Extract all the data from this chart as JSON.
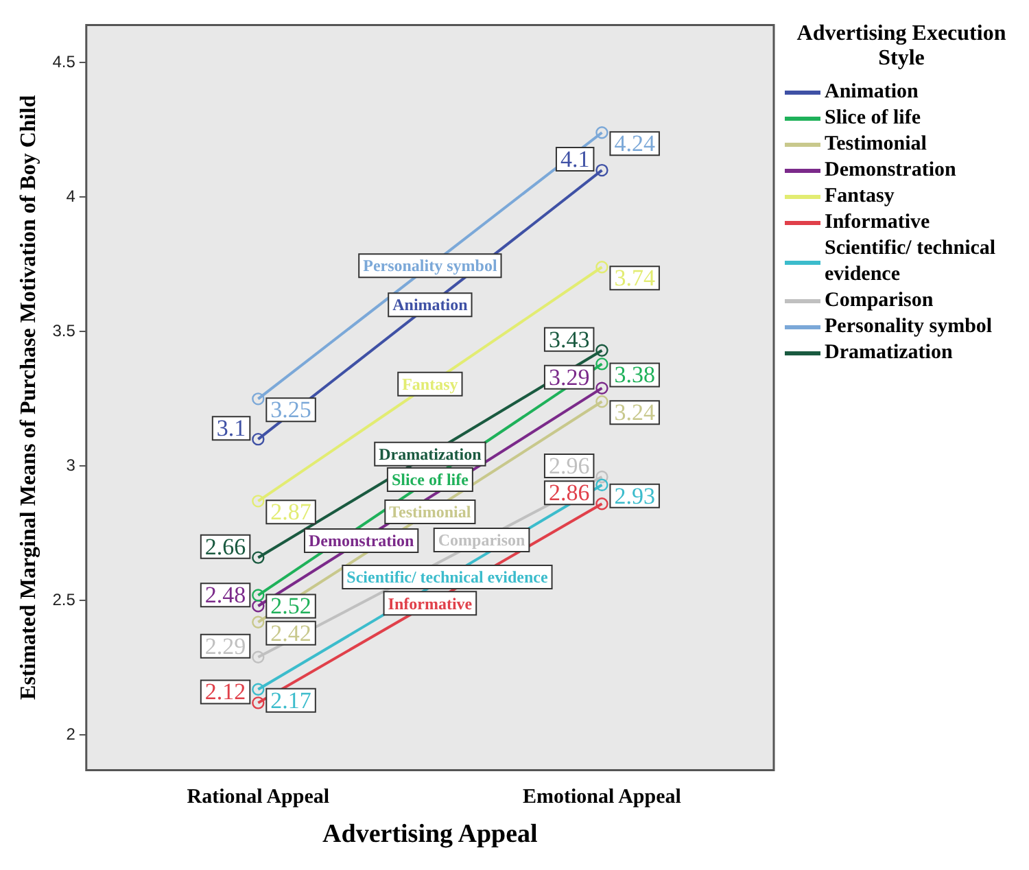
{
  "chart_data": {
    "type": "line",
    "xlabel": "Advertising Appeal",
    "ylabel": "Estimated Marginal Means of Purchase Motivation of Boy Child",
    "legend_title": "Advertising Execution Style",
    "categories": [
      "Rational Appeal",
      "Emotional Appeal"
    ],
    "series": [
      {
        "name": "Animation",
        "color": "#3f51a5",
        "values": [
          3.1,
          4.1
        ]
      },
      {
        "name": "Slice of life",
        "color": "#1fb15a",
        "values": [
          2.52,
          3.38
        ]
      },
      {
        "name": "Testimonial",
        "color": "#c8c88c",
        "values": [
          2.42,
          3.24
        ]
      },
      {
        "name": "Demonstration",
        "color": "#7b2a8a",
        "values": [
          2.48,
          3.29
        ]
      },
      {
        "name": "Fantasy",
        "color": "#e2ec72",
        "values": [
          2.87,
          3.74
        ]
      },
      {
        "name": "Informative",
        "color": "#e0404a",
        "values": [
          2.12,
          2.86
        ]
      },
      {
        "name": "Scientific/ technical evidence",
        "color": "#3cbccc",
        "values": [
          2.17,
          2.93
        ]
      },
      {
        "name": "Comparison",
        "color": "#c0c0c0",
        "values": [
          2.29,
          2.96
        ]
      },
      {
        "name": "Personality symbol",
        "color": "#7ba8d8",
        "values": [
          3.25,
          4.24
        ]
      },
      {
        "name": "Dramatization",
        "color": "#1a5a40",
        "values": [
          2.66,
          3.43
        ]
      }
    ],
    "ylim": [
      1.87,
      4.64
    ],
    "yticks": [
      2,
      2.5,
      3,
      3.5,
      4,
      4.5
    ],
    "grid": false,
    "legend": "right",
    "marker": "circle",
    "line_style": "solid",
    "data_labels": true
  }
}
